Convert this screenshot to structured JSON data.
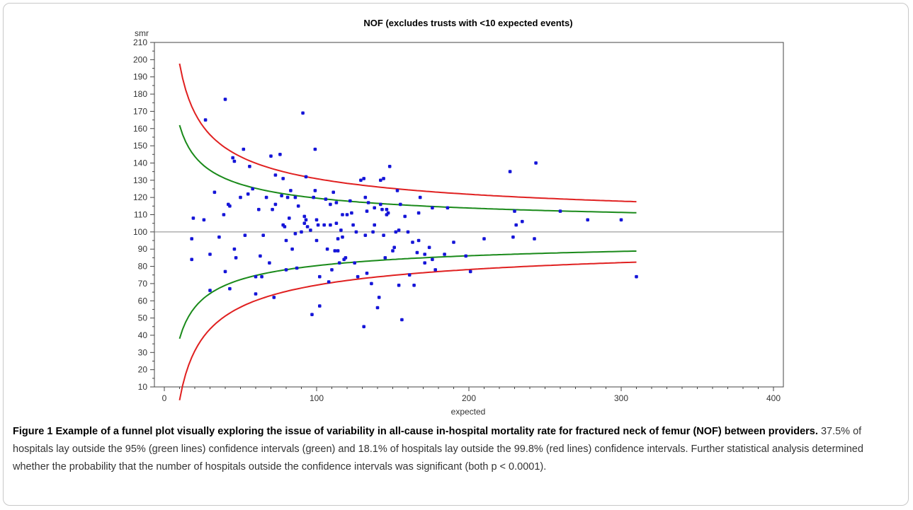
{
  "chart_data": {
    "type": "scatter",
    "title": "NOF (excludes trusts with <10 expected events)",
    "xlabel": "expected",
    "ylabel": "smr",
    "xlim": [
      0,
      400
    ],
    "ylim": [
      10,
      210
    ],
    "x_ticks": [
      0,
      100,
      200,
      300,
      400
    ],
    "y_ticks": [
      10,
      20,
      30,
      40,
      50,
      60,
      70,
      80,
      90,
      100,
      110,
      120,
      130,
      140,
      150,
      160,
      170,
      180,
      190,
      200,
      210
    ],
    "reference_line": 100,
    "limits": [
      {
        "level": "99.8%",
        "color": "#e02020",
        "z": 3.09,
        "x_range": [
          10,
          310
        ]
      },
      {
        "level": "95%",
        "color": "#1a8a1a",
        "z": 1.96,
        "x_range": [
          10,
          310
        ]
      }
    ],
    "point_color": "#1515d8",
    "points": [
      [
        18,
        96
      ],
      [
        18,
        84
      ],
      [
        19,
        108
      ],
      [
        26,
        107
      ],
      [
        27,
        165
      ],
      [
        30,
        87
      ],
      [
        30,
        66
      ],
      [
        33,
        123
      ],
      [
        36,
        97
      ],
      [
        39,
        110
      ],
      [
        40,
        77
      ],
      [
        40,
        177
      ],
      [
        42,
        116
      ],
      [
        43,
        67
      ],
      [
        43,
        115
      ],
      [
        45,
        143
      ],
      [
        46,
        141
      ],
      [
        46,
        90
      ],
      [
        47,
        85
      ],
      [
        50,
        120
      ],
      [
        52,
        148
      ],
      [
        53,
        98
      ],
      [
        55,
        122
      ],
      [
        56,
        138
      ],
      [
        58,
        125
      ],
      [
        60,
        74
      ],
      [
        60,
        64
      ],
      [
        62,
        113
      ],
      [
        63,
        86
      ],
      [
        64,
        74
      ],
      [
        65,
        98
      ],
      [
        67,
        120
      ],
      [
        69,
        82
      ],
      [
        70,
        144
      ],
      [
        71,
        113
      ],
      [
        72,
        62
      ],
      [
        73,
        133
      ],
      [
        73,
        116
      ],
      [
        76,
        145
      ],
      [
        77,
        121
      ],
      [
        78,
        104
      ],
      [
        78,
        131
      ],
      [
        79,
        103
      ],
      [
        80,
        78
      ],
      [
        80,
        95
      ],
      [
        81,
        120
      ],
      [
        82,
        108
      ],
      [
        83,
        124
      ],
      [
        84,
        90
      ],
      [
        86,
        99
      ],
      [
        86,
        120
      ],
      [
        87,
        79
      ],
      [
        88,
        115
      ],
      [
        90,
        100
      ],
      [
        91,
        169
      ],
      [
        92,
        105
      ],
      [
        92,
        109
      ],
      [
        93,
        107
      ],
      [
        93,
        132
      ],
      [
        94,
        103
      ],
      [
        96,
        101
      ],
      [
        97,
        52
      ],
      [
        98,
        120
      ],
      [
        99,
        124
      ],
      [
        99,
        148
      ],
      [
        100,
        95
      ],
      [
        100,
        107
      ],
      [
        101,
        104
      ],
      [
        102,
        74
      ],
      [
        102,
        57
      ],
      [
        105,
        104
      ],
      [
        106,
        119
      ],
      [
        107,
        90
      ],
      [
        108,
        71
      ],
      [
        109,
        104
      ],
      [
        109,
        116
      ],
      [
        110,
        78
      ],
      [
        111,
        123
      ],
      [
        112,
        89
      ],
      [
        113,
        117
      ],
      [
        113,
        105
      ],
      [
        114,
        96
      ],
      [
        114,
        89
      ],
      [
        115,
        82
      ],
      [
        116,
        101
      ],
      [
        117,
        97
      ],
      [
        117,
        110
      ],
      [
        118,
        84
      ],
      [
        119,
        85
      ],
      [
        120,
        110
      ],
      [
        122,
        118
      ],
      [
        123,
        111
      ],
      [
        124,
        104
      ],
      [
        125,
        82
      ],
      [
        126,
        100
      ],
      [
        127,
        74
      ],
      [
        129,
        130
      ],
      [
        131,
        131
      ],
      [
        131,
        45
      ],
      [
        132,
        98
      ],
      [
        132,
        120
      ],
      [
        133,
        112
      ],
      [
        133,
        76
      ],
      [
        134,
        117
      ],
      [
        136,
        70
      ],
      [
        137,
        100
      ],
      [
        138,
        104
      ],
      [
        138,
        114
      ],
      [
        140,
        56
      ],
      [
        141,
        62
      ],
      [
        142,
        130
      ],
      [
        142,
        116
      ],
      [
        143,
        113
      ],
      [
        144,
        98
      ],
      [
        144,
        131
      ],
      [
        145,
        85
      ],
      [
        146,
        113
      ],
      [
        146,
        110
      ],
      [
        147,
        111
      ],
      [
        148,
        138
      ],
      [
        150,
        89
      ],
      [
        151,
        91
      ],
      [
        152,
        100
      ],
      [
        153,
        124
      ],
      [
        154,
        69
      ],
      [
        154,
        101
      ],
      [
        155,
        116
      ],
      [
        156,
        49
      ],
      [
        158,
        109
      ],
      [
        160,
        100
      ],
      [
        161,
        75
      ],
      [
        163,
        94
      ],
      [
        164,
        69
      ],
      [
        166,
        88
      ],
      [
        167,
        95
      ],
      [
        167,
        111
      ],
      [
        168,
        120
      ],
      [
        171,
        82
      ],
      [
        171,
        87
      ],
      [
        174,
        91
      ],
      [
        176,
        84
      ],
      [
        176,
        114
      ],
      [
        178,
        78
      ],
      [
        184,
        87
      ],
      [
        186,
        114
      ],
      [
        190,
        94
      ],
      [
        198,
        86
      ],
      [
        201,
        77
      ],
      [
        210,
        96
      ],
      [
        227,
        135
      ],
      [
        229,
        97
      ],
      [
        230,
        112
      ],
      [
        231,
        104
      ],
      [
        235,
        106
      ],
      [
        243,
        96
      ],
      [
        244,
        140
      ],
      [
        260,
        112
      ],
      [
        278,
        107
      ],
      [
        300,
        107
      ],
      [
        310,
        74
      ]
    ]
  },
  "caption": {
    "figure_label": "Figure 1",
    "title": "Example of a funnel plot visually exploring the issue of variability in all-cause in-hospital mortality rate for fractured neck of femur (NOF) between providers.",
    "body": "37.5% of hospitals lay outside the 95% (green lines) confidence intervals (green) and 18.1% of hospitals lay outside the 99.8% (red lines) confidence intervals. Further statistical analysis determined whether the probability that the number of hospitals outside the confidence intervals was significant (both p < 0.0001)."
  }
}
